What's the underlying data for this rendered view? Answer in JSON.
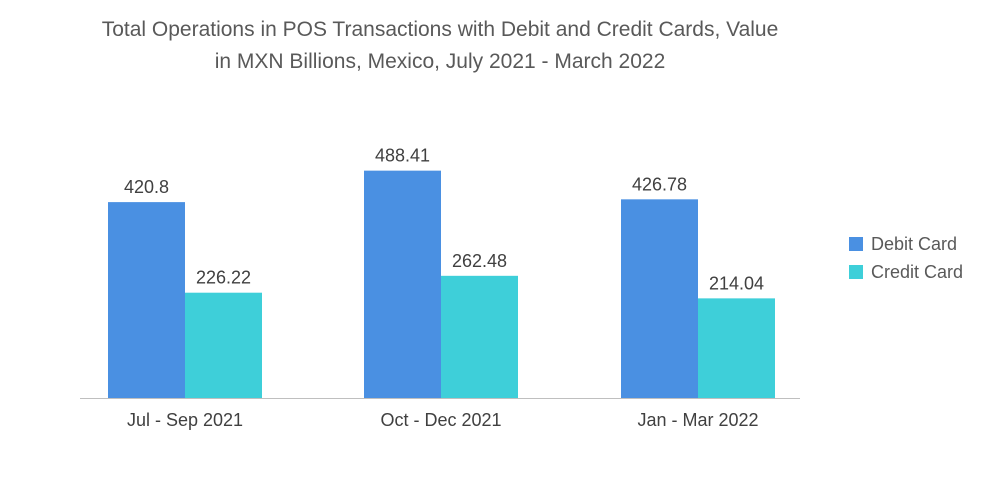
{
  "title_line1": "Total Operations in POS Transactions with Debit and Credit Cards, Value",
  "title_line2": "in MXN Billions, Mexico, July 2021 - March 2022",
  "chart_data": {
    "type": "bar",
    "title": "Total Operations in POS Transactions with Debit and Credit Cards, Value in MXN Billions, Mexico, July 2021 - March 2022",
    "categories": [
      "Jul - Sep 2021",
      "Oct - Dec 2021",
      "Jan - Mar 2022"
    ],
    "series": [
      {
        "name": "Debit Card",
        "values": [
          420.8,
          488.41,
          426.78
        ],
        "color": "#4a90e2"
      },
      {
        "name": "Credit Card",
        "values": [
          226.22,
          262.48,
          214.04
        ],
        "color": "#3ecfd9"
      }
    ],
    "ylim": [
      0,
      500
    ],
    "grid": false,
    "legend": "right",
    "xlabel": "",
    "ylabel": ""
  }
}
